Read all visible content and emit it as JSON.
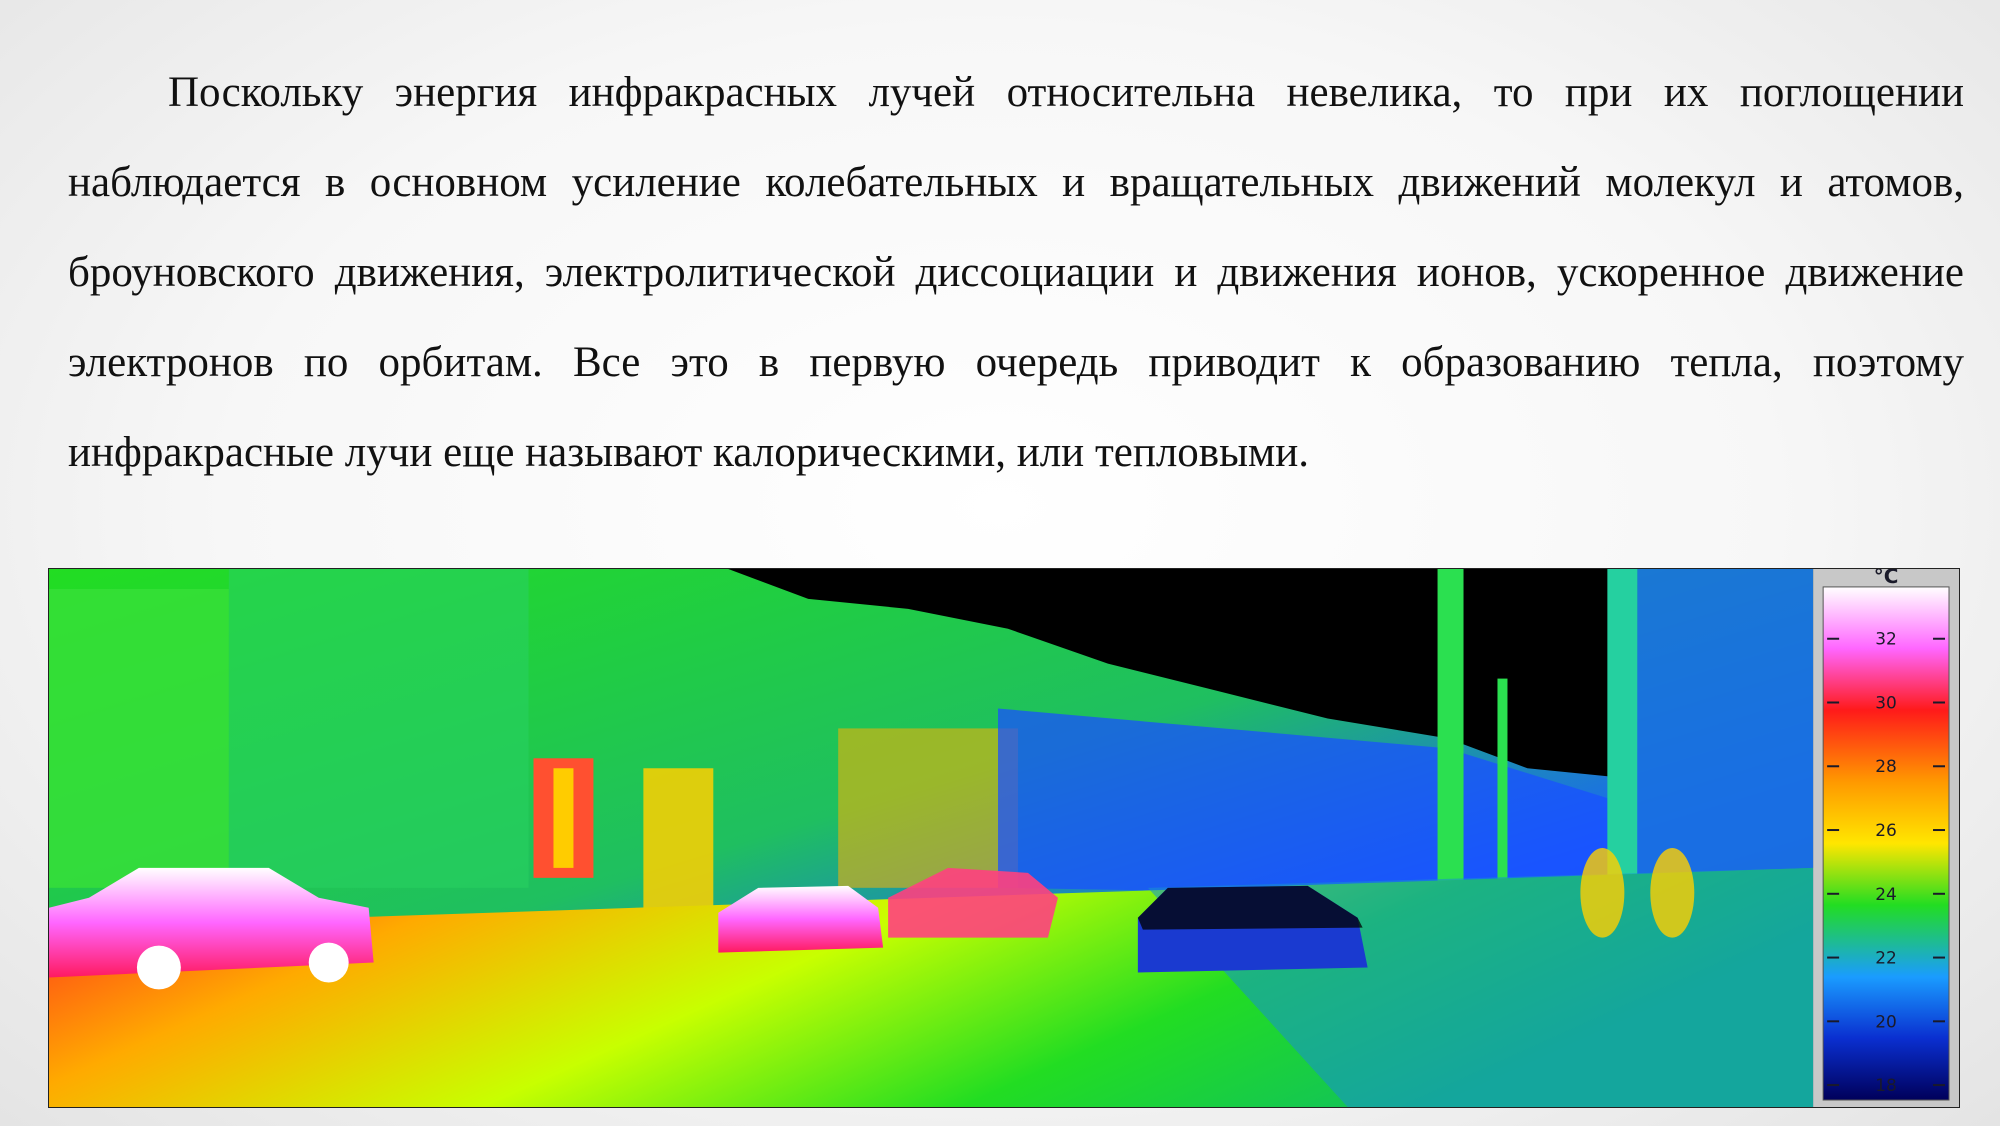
{
  "paragraph": "Поскольку энергия инфракрасных лучей относительна невелика, то при их поглощении наблюдается в основном усиление колебательных и вращательных движений молекул и атомов, броуновского движения, электролитической диссоциации и движения ионов, ускоренное движение электронов по орбитам. Все это в первую очередь приводит к образованию тепла, поэтому инфракрасные лучи еще называют калорическими, или тепловыми.",
  "thermal_image": {
    "scale": {
      "unit": "°C",
      "ticks": [
        "32",
        "30",
        "28",
        "26",
        "24",
        "22",
        "20",
        "18"
      ]
    }
  },
  "colors": {
    "text": "#111111",
    "scale_hot": "#ff66ff",
    "scale_warm": "#ff1a1a",
    "scale_mid": "#ffd400",
    "scale_green": "#22dd22",
    "scale_cool": "#1a7cff",
    "scale_cold": "#00005a"
  }
}
